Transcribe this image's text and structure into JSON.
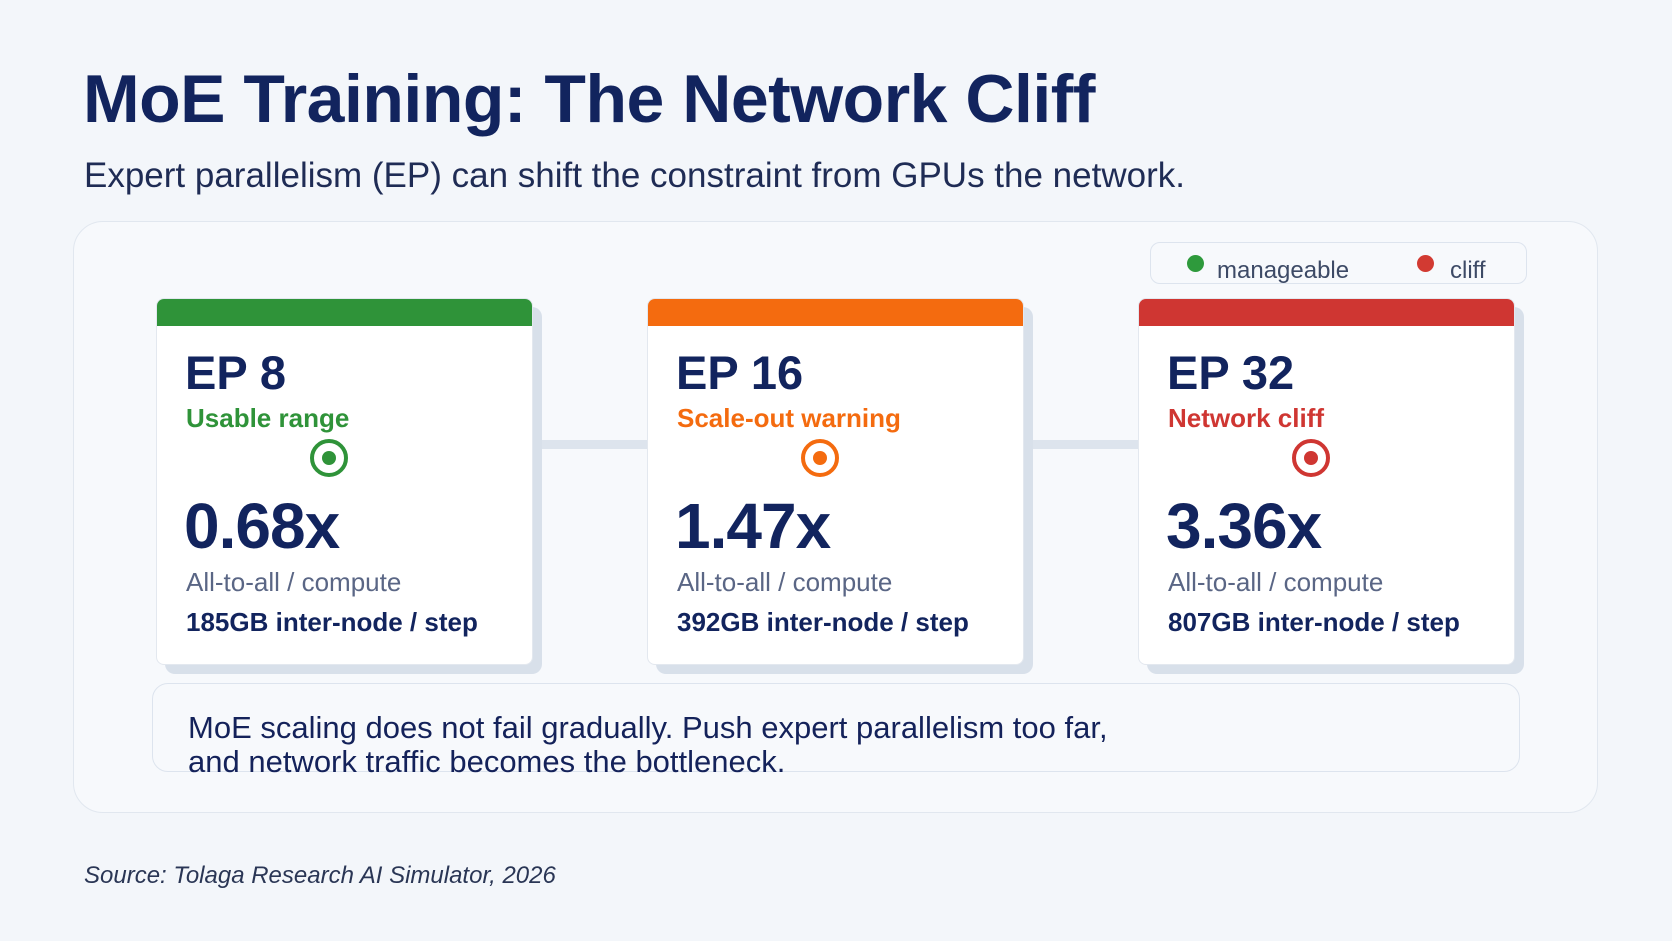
{
  "header": {
    "title": "MoE Training: The Network Cliff",
    "subtitle": "Expert parallelism (EP) can shift the constraint from GPUs the network."
  },
  "legend": {
    "items": [
      {
        "label": "manageable",
        "color": "#2e9a3c"
      },
      {
        "label": "cliff",
        "color": "#d23a32"
      }
    ]
  },
  "cards": [
    {
      "ep": "EP 8",
      "status": "Usable range",
      "accent": "#2f9339",
      "icon": "target-icon",
      "value": "0.68x",
      "metric_label": "All-to-all / compute",
      "traffic": "185GB inter-node / step"
    },
    {
      "ep": "EP 16",
      "status": "Scale-out warning",
      "accent": "#f46b0f",
      "icon": "target-icon",
      "value": "1.47x",
      "metric_label": "All-to-all / compute",
      "traffic": "392GB inter-node / step"
    },
    {
      "ep": "EP 32",
      "status": "Network cliff",
      "accent": "#cf3632",
      "icon": "target-icon",
      "value": "3.36x",
      "metric_label": "All-to-all / compute",
      "traffic": "807GB inter-node / step"
    }
  ],
  "note": {
    "line1": "MoE scaling does not fail gradually. Push expert parallelism too far,",
    "line2": "and network traffic becomes the bottleneck."
  },
  "source": "Source: Tolaga Research AI Simulator, 2026"
}
